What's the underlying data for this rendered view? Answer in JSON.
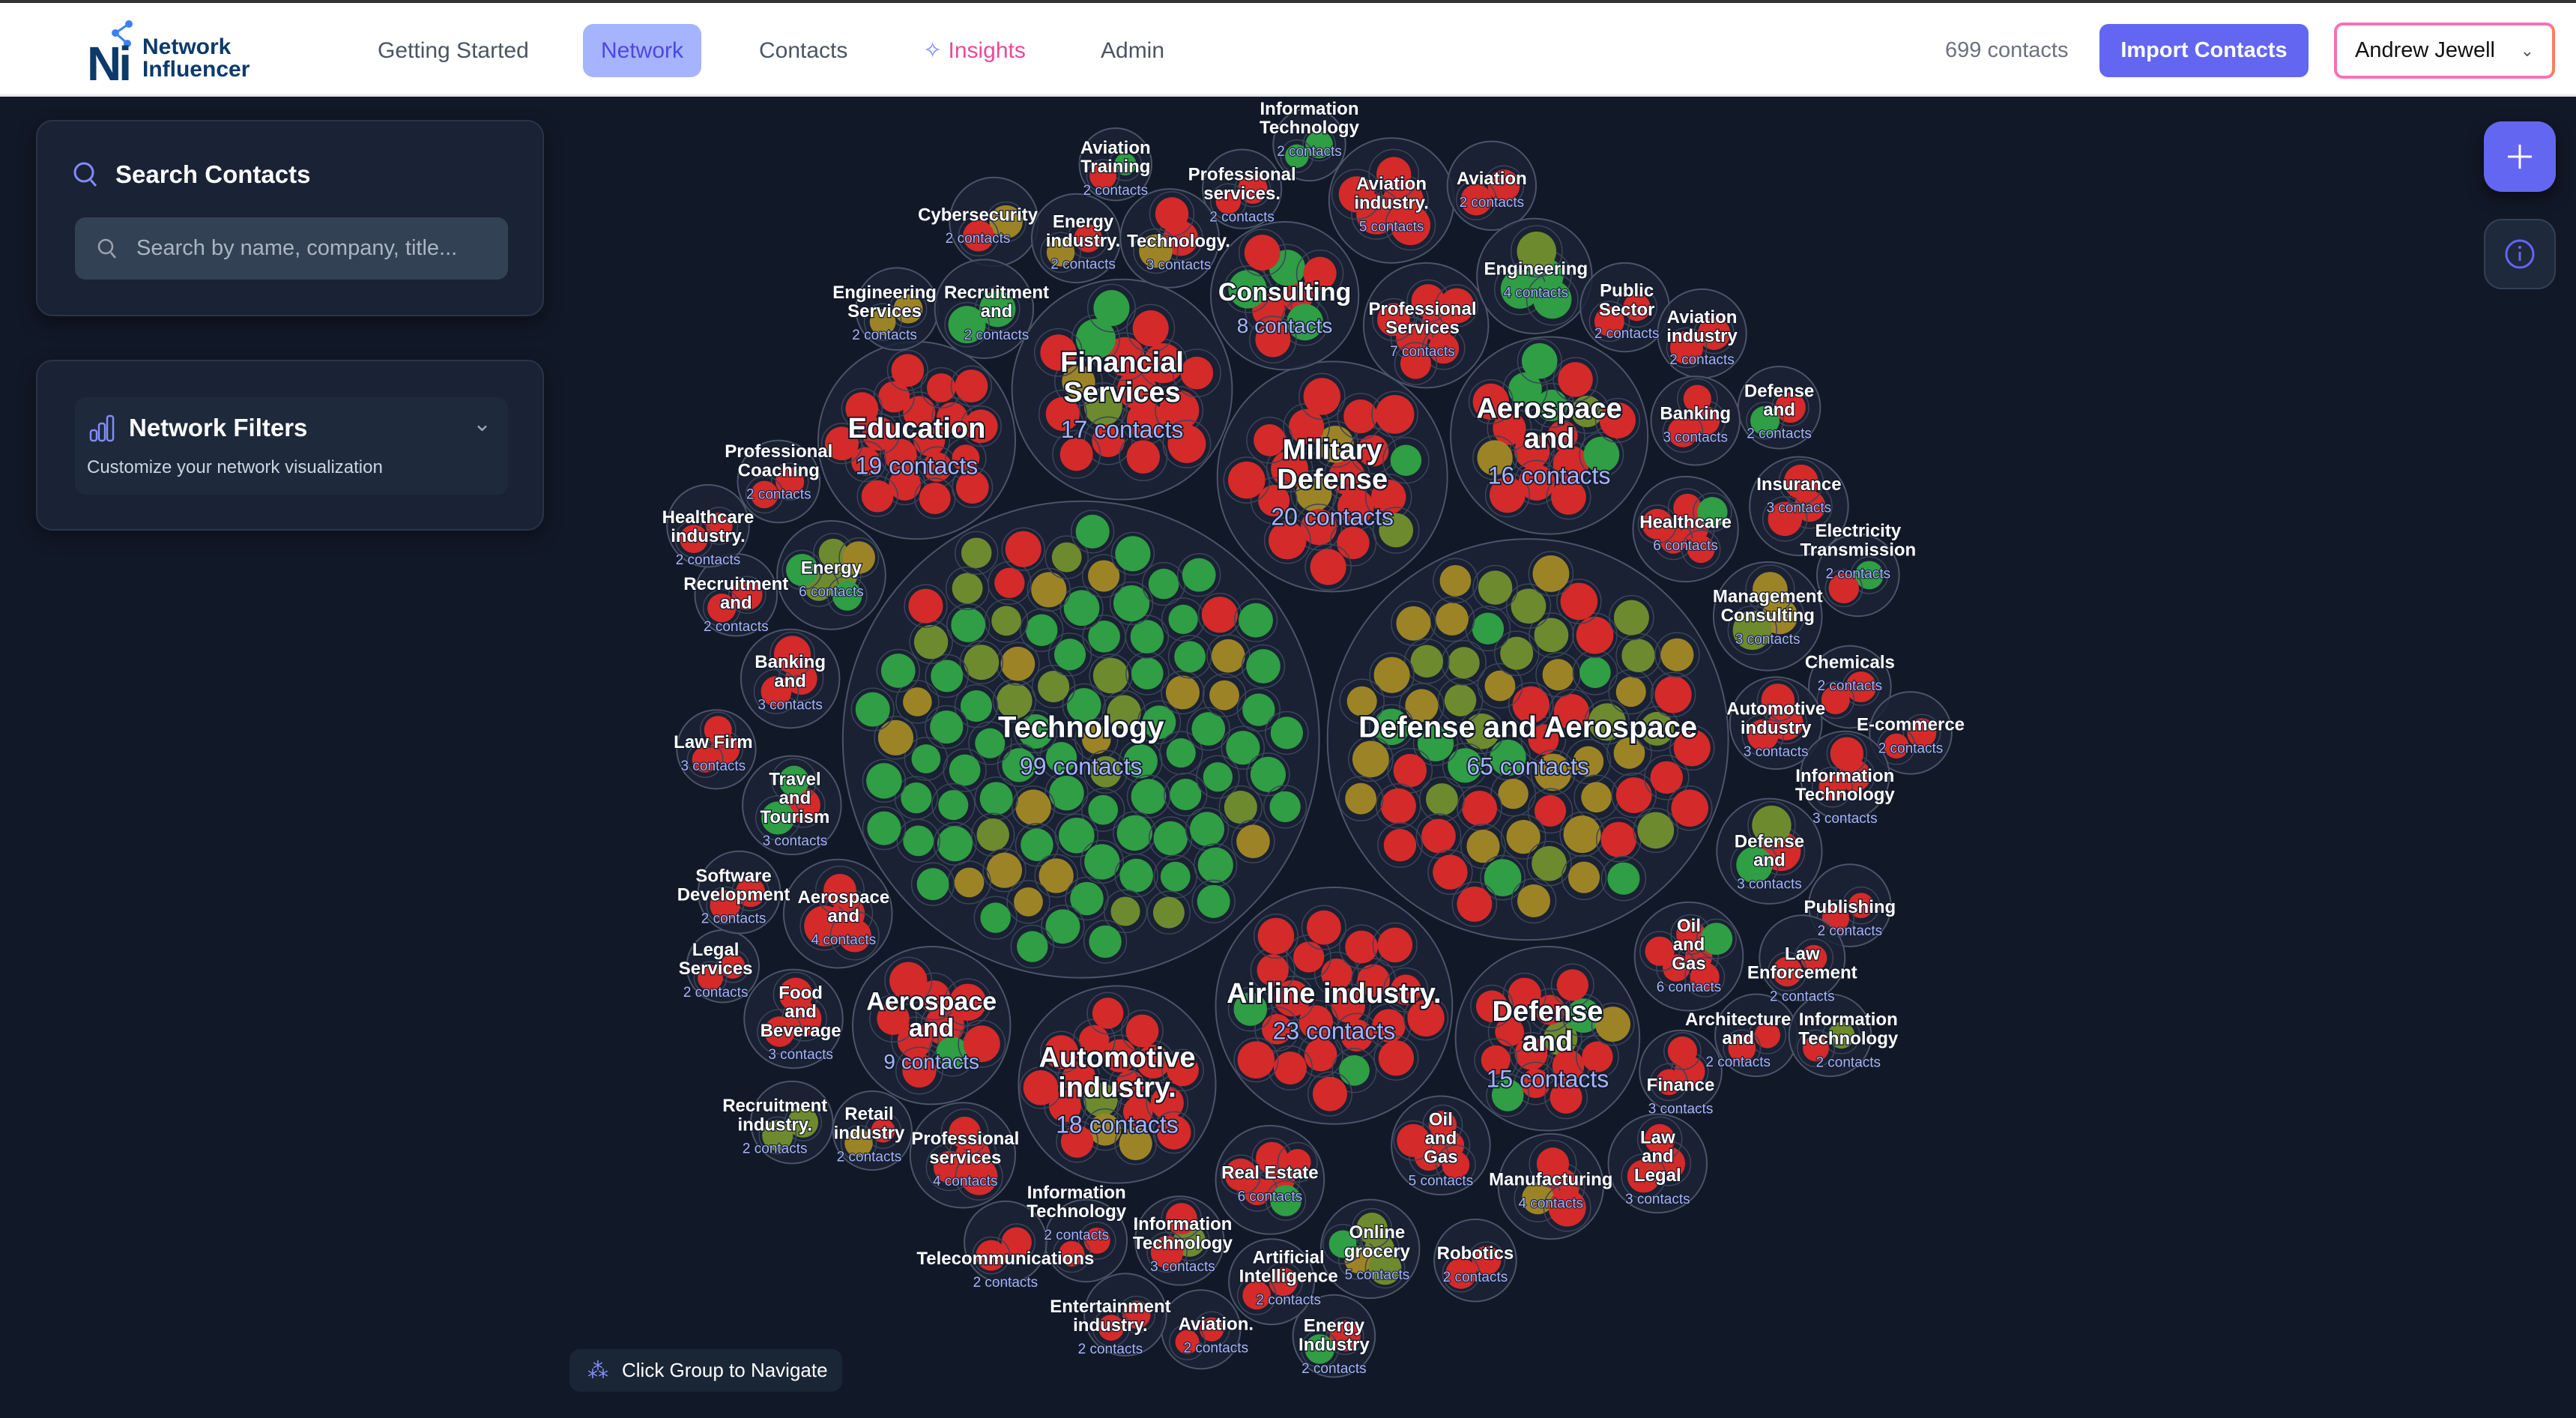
{
  "app": {
    "name_line1": "Network",
    "name_line2": "Influencer",
    "logo_mark": "Ni"
  },
  "nav": [
    {
      "label": "Getting Started"
    },
    {
      "label": "Network",
      "active": true
    },
    {
      "label": "Contacts"
    },
    {
      "label": "Insights",
      "icon": "sparkles-icon"
    },
    {
      "label": "Admin"
    }
  ],
  "header": {
    "contact_count": "699 contacts",
    "import_label": "Import Contacts",
    "user_name": "Andrew Jewell"
  },
  "search": {
    "title": "Search Contacts",
    "placeholder": "Search by name, company, title..."
  },
  "filters": {
    "title": "Network Filters",
    "subtitle": "Customize your network visualization"
  },
  "graph": {
    "hint": "Click Group to Navigate"
  },
  "colors": {
    "accent": "#6366f1",
    "red": "#d42a2a",
    "green": "#2f9e44",
    "olive": "#6e8a2e",
    "amber": "#9c8426",
    "count_text": "#a5b4fc"
  },
  "groups": [
    {
      "label": "Technology",
      "count": "99 contacts"
    },
    {
      "label": "Defense and Aerospace",
      "count": "65 contacts"
    },
    {
      "label": "Education",
      "count": "19 contacts"
    },
    {
      "label": "Financial Services",
      "count": "17 contacts"
    },
    {
      "label": "Military Defense",
      "count": "20 contacts"
    },
    {
      "label": "Aerospace and",
      "count": "16 contacts"
    },
    {
      "label": "Consulting",
      "count": "8 contacts"
    },
    {
      "label": "Professional Services",
      "count": "7 contacts"
    },
    {
      "label": "Airline industry.",
      "count": "23 contacts"
    },
    {
      "label": "Automotive industry.",
      "count": "18 contacts"
    },
    {
      "label": "Defense and",
      "count": "15 contacts"
    },
    {
      "label": "Aerospace and",
      "count": "9 contacts"
    },
    {
      "label": "Aviation Training",
      "count": "2 contacts"
    },
    {
      "label": "Professional services.",
      "count": "2 contacts"
    },
    {
      "label": "Information Technology",
      "count": "2 contacts"
    },
    {
      "label": "Aviation industry.",
      "count": "5 contacts"
    },
    {
      "label": "Aviation",
      "count": "2 contacts"
    },
    {
      "label": "Cybersecurity",
      "count": "2 contacts"
    },
    {
      "label": "Energy industry.",
      "count": "2 contacts"
    },
    {
      "label": "Technology.",
      "count": "3 contacts"
    },
    {
      "label": "Engineering Services",
      "count": "2 contacts"
    },
    {
      "label": "Recruitment and",
      "count": "2 contacts"
    },
    {
      "label": "Engineering",
      "count": "4 contacts"
    },
    {
      "label": "Public Sector",
      "count": "2 contacts"
    },
    {
      "label": "Aviation industry",
      "count": "2 contacts"
    },
    {
      "label": "Defense and",
      "count": "2 contacts"
    },
    {
      "label": "Banking",
      "count": "3 contacts"
    },
    {
      "label": "Healthcare",
      "count": "6 contacts"
    },
    {
      "label": "Insurance",
      "count": "3 contacts"
    },
    {
      "label": "Electricity Transmission",
      "count": "2 contacts"
    },
    {
      "label": "Management Consulting",
      "count": "3 contacts"
    },
    {
      "label": "Chemicals",
      "count": "2 contacts"
    },
    {
      "label": "Automotive industry",
      "count": "3 contacts"
    },
    {
      "label": "E-commerce",
      "count": "2 contacts"
    },
    {
      "label": "Information Technology",
      "count": "3 contacts"
    },
    {
      "label": "Defense and",
      "count": "3 contacts"
    },
    {
      "label": "Publishing",
      "count": "2 contacts"
    },
    {
      "label": "Oil and Gas",
      "count": "6 contacts"
    },
    {
      "label": "Law Enforcement",
      "count": "2 contacts"
    },
    {
      "label": "Architecture and",
      "count": "2 contacts"
    },
    {
      "label": "Information Technology",
      "count": "2 contacts"
    },
    {
      "label": "Finance",
      "count": "3 contacts"
    },
    {
      "label": "Law and Legal",
      "count": "3 contacts"
    },
    {
      "label": "Manufacturing",
      "count": "4 contacts"
    },
    {
      "label": "Robotics",
      "count": "2 contacts"
    },
    {
      "label": "Oil and Gas",
      "count": "5 contacts"
    },
    {
      "label": "Online grocery",
      "count": "5 contacts"
    },
    {
      "label": "Real Estate",
      "count": "6 contacts"
    },
    {
      "label": "Energy Industry",
      "count": "2 contacts"
    },
    {
      "label": "Artificial Intelligence",
      "count": "2 contacts"
    },
    {
      "label": "Aviation.",
      "count": "2 contacts"
    },
    {
      "label": "Entertainment industry.",
      "count": "2 contacts"
    },
    {
      "label": "Information Technology",
      "count": "2 contacts"
    },
    {
      "label": "Information Technology",
      "count": "3 contacts"
    },
    {
      "label": "Telecommunications",
      "count": "2 contacts"
    },
    {
      "label": "Professional services",
      "count": "4 contacts"
    },
    {
      "label": "Retail industry",
      "count": "2 contacts"
    },
    {
      "label": "Recruitment industry.",
      "count": "2 contacts"
    },
    {
      "label": "Food and Beverage",
      "count": "3 contacts"
    },
    {
      "label": "Legal Services",
      "count": "2 contacts"
    },
    {
      "label": "Software Development",
      "count": "2 contacts"
    },
    {
      "label": "Aerospace and",
      "count": "4 contacts"
    },
    {
      "label": "Travel and Tourism",
      "count": "3 contacts"
    },
    {
      "label": "Law Firm",
      "count": "3 contacts"
    },
    {
      "label": "Banking and",
      "count": "3 contacts"
    },
    {
      "label": "Recruitment and",
      "count": "2 contacts"
    },
    {
      "label": "Energy",
      "count": "6 contacts"
    },
    {
      "label": "Healthcare industry.",
      "count": "2 contacts"
    },
    {
      "label": "Professional Coaching",
      "count": "2 contacts"
    }
  ]
}
